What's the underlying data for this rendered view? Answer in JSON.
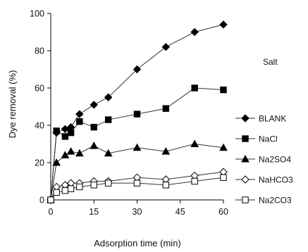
{
  "chart_data": {
    "type": "line",
    "xlabel": "Adsorption time (min)",
    "ylabel": "Dye removal (%)",
    "xlim": [
      0,
      60
    ],
    "ylim": [
      0,
      100
    ],
    "xticks": [
      "0",
      "15",
      "30",
      "45",
      "60"
    ],
    "yticks": [
      "0",
      "20",
      "40",
      "60",
      "80",
      "100"
    ],
    "grid": false,
    "legend": {
      "title": "Salt",
      "position": "right"
    },
    "x": [
      0,
      2,
      5,
      7,
      10,
      15,
      20,
      30,
      40,
      50,
      60
    ],
    "series": [
      {
        "name": "BLANK",
        "marker": "diamond-filled",
        "color": "#000000",
        "values": [
          0,
          36,
          38,
          39,
          46,
          51,
          55,
          70,
          82,
          90,
          94
        ]
      },
      {
        "name": "NaCl",
        "marker": "square-filled",
        "color": "#000000",
        "values": [
          0,
          37,
          34,
          36,
          42,
          39,
          43,
          46,
          49,
          60,
          59
        ]
      },
      {
        "name": "Na2SO4",
        "marker": "triangle-filled",
        "color": "#000000",
        "values": [
          0,
          20,
          24,
          26,
          25,
          29,
          25,
          28,
          26,
          30,
          28
        ]
      },
      {
        "name": "NaHCO3",
        "marker": "diamond-open",
        "color": "#000000",
        "values": [
          0,
          7,
          8,
          9,
          9,
          10,
          10,
          12,
          11,
          13,
          15
        ]
      },
      {
        "name": "Na2CO3",
        "marker": "square-open",
        "color": "#000000",
        "values": [
          0,
          4,
          5,
          6,
          7,
          8,
          9,
          9,
          8,
          10,
          12
        ]
      }
    ]
  }
}
